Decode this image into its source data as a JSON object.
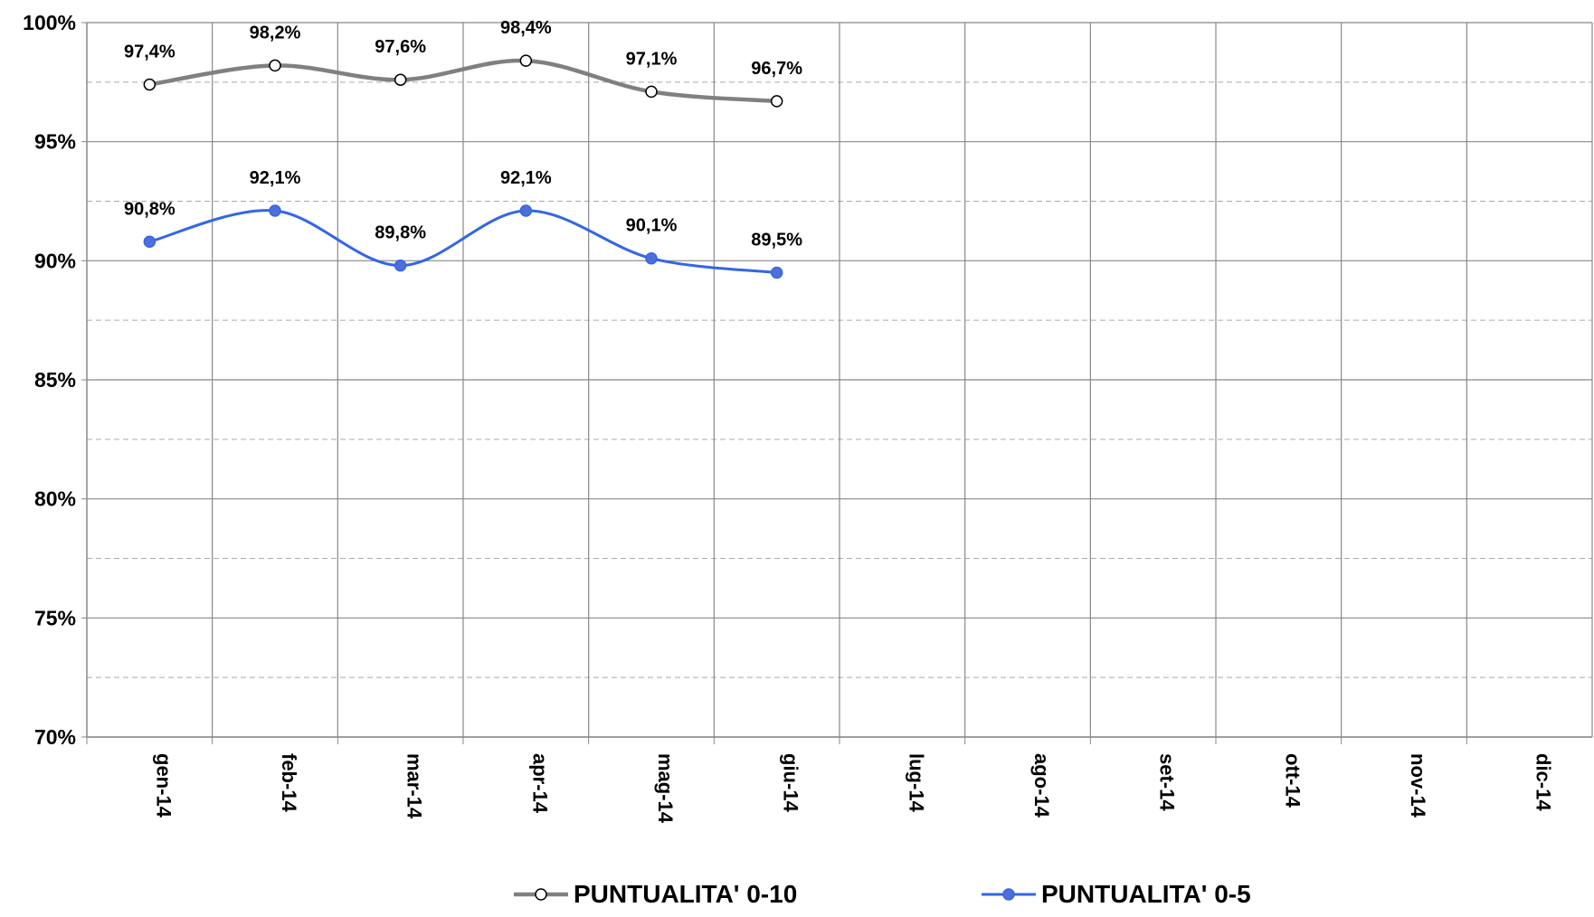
{
  "chart_data": {
    "type": "line",
    "categories": [
      "gen-14",
      "feb-14",
      "mar-14",
      "apr-14",
      "mag-14",
      "giu-14",
      "lug-14",
      "ago-14",
      "set-14",
      "ott-14",
      "nov-14",
      "dic-14"
    ],
    "series": [
      {
        "name": "PUNTUALITA' 0-10",
        "color": "#808080",
        "marker_fill": "#ffffff",
        "values": [
          97.4,
          98.2,
          97.6,
          98.4,
          97.1,
          96.7,
          null,
          null,
          null,
          null,
          null,
          null
        ],
        "value_labels": [
          "97,4%",
          "98,2%",
          "97,6%",
          "98,4%",
          "97,1%",
          "96,7%",
          null,
          null,
          null,
          null,
          null,
          null
        ]
      },
      {
        "name": "PUNTUALITA' 0-5",
        "color": "#3366e6",
        "marker_fill": "#4f6fd8",
        "values": [
          90.8,
          92.1,
          89.8,
          92.1,
          90.1,
          89.5,
          null,
          null,
          null,
          null,
          null,
          null
        ],
        "value_labels": [
          "90,8%",
          "92,1%",
          "89,8%",
          "92,1%",
          "90,1%",
          "89,5%",
          null,
          null,
          null,
          null,
          null,
          null
        ]
      }
    ],
    "ylim": [
      70,
      100
    ],
    "yticks": [
      {
        "value": 70,
        "label": "70%"
      },
      {
        "value": 75,
        "label": "75%"
      },
      {
        "value": 80,
        "label": "80%"
      },
      {
        "value": 85,
        "label": "85%"
      },
      {
        "value": 90,
        "label": "90%"
      },
      {
        "value": 95,
        "label": "95%"
      },
      {
        "value": 100,
        "label": "100%"
      }
    ],
    "minor_yticks": [
      72.5,
      77.5,
      82.5,
      87.5,
      92.5,
      97.5
    ],
    "grid": true,
    "legend": "bottom"
  }
}
